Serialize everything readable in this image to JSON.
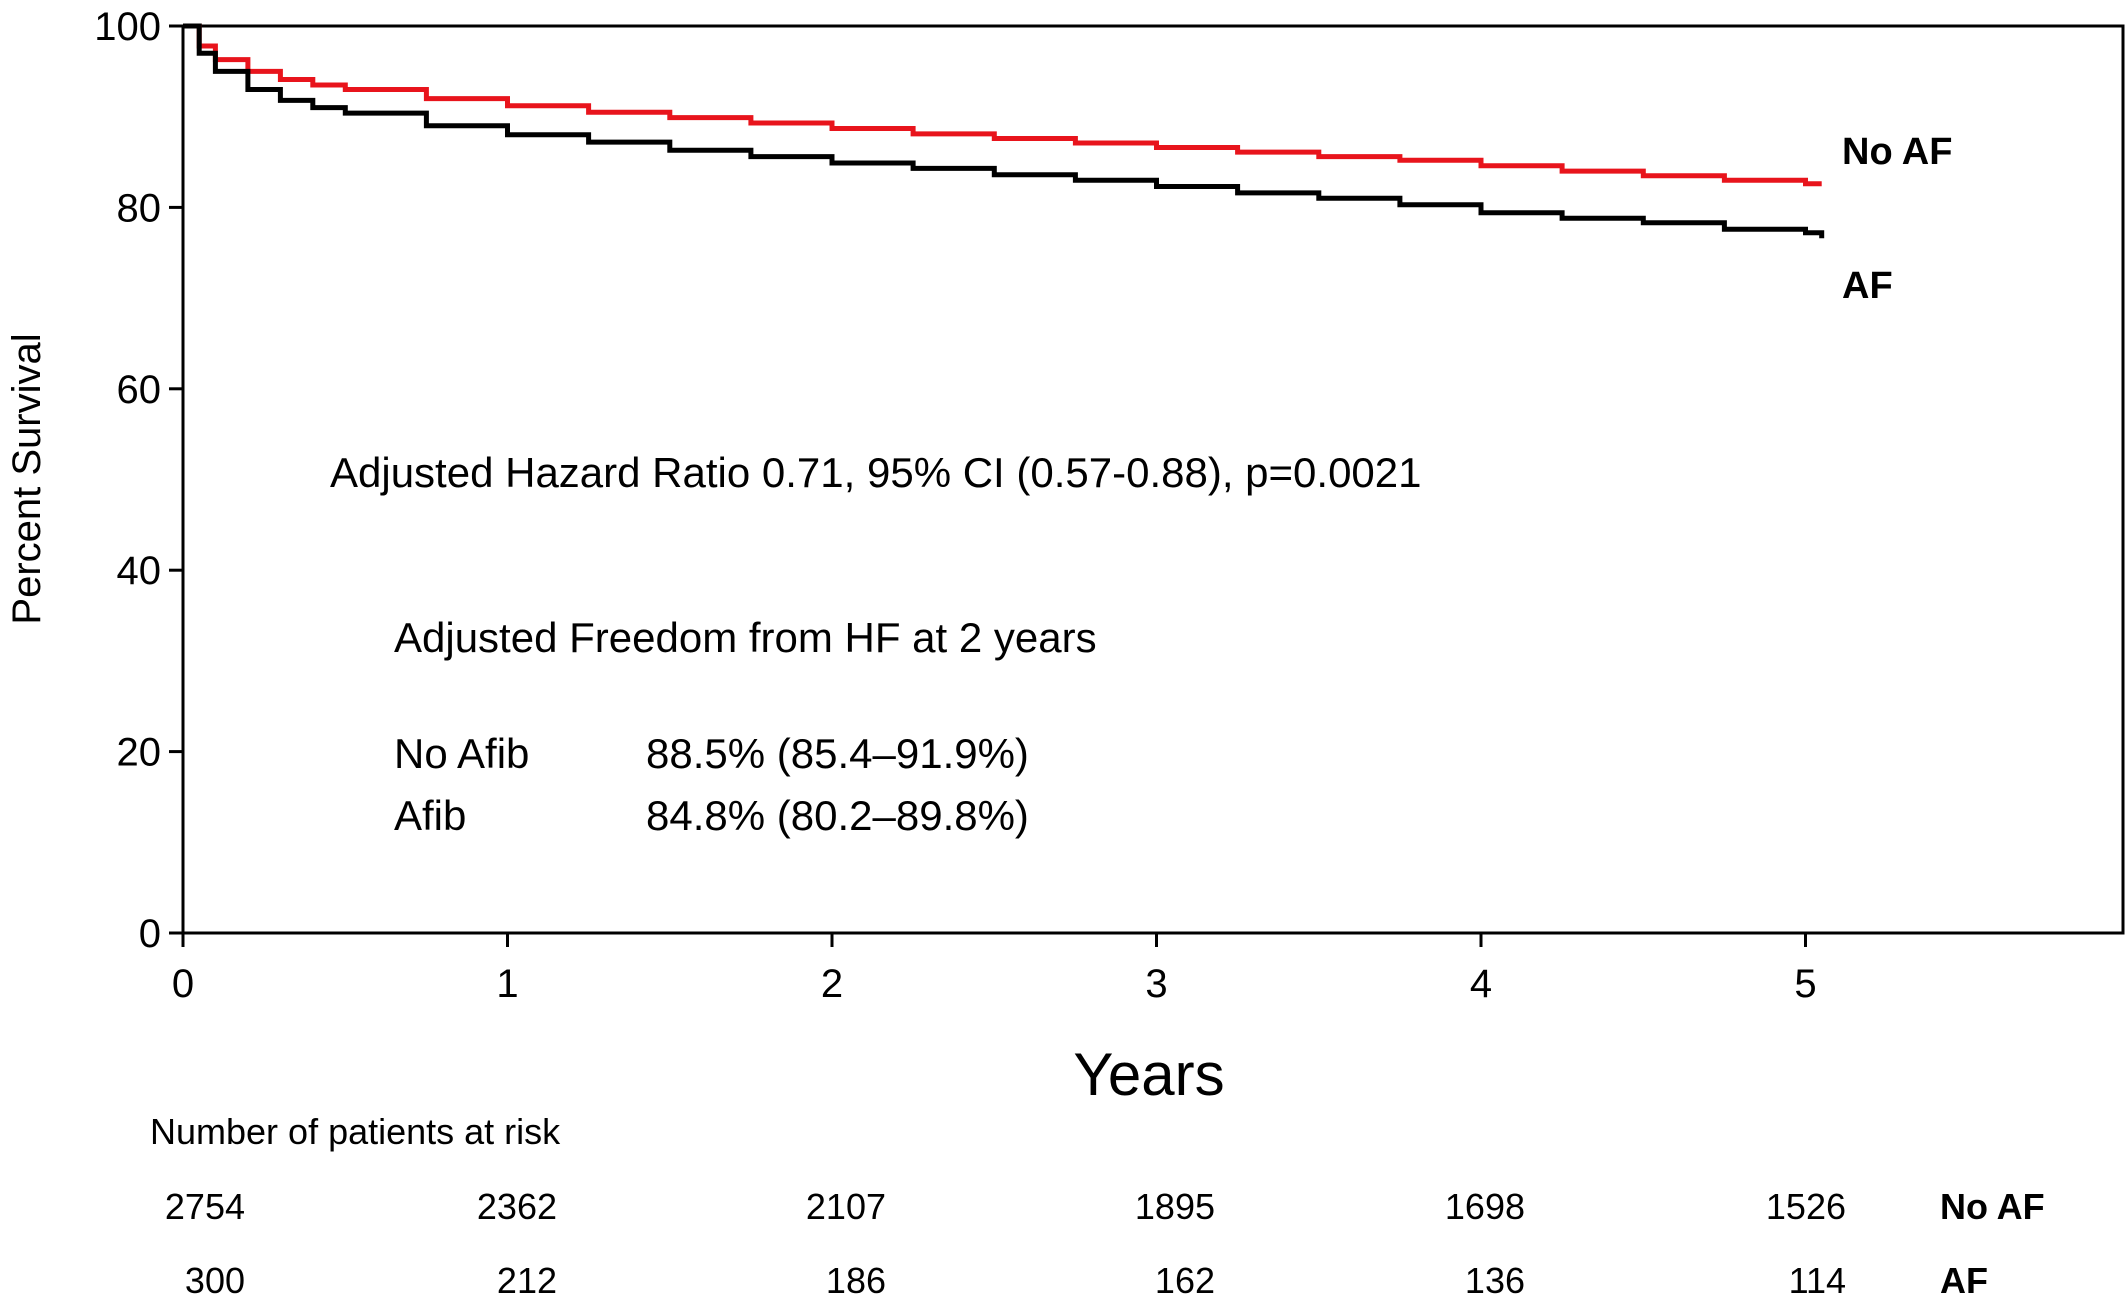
{
  "chart_data": {
    "type": "line",
    "step": true,
    "xlabel": "Years",
    "ylabel": "Percent Survival",
    "xlim": [
      0,
      6
    ],
    "ylim": [
      0,
      100
    ],
    "xticks": [
      0,
      1,
      2,
      3,
      4,
      5
    ],
    "yticks": [
      0,
      20,
      40,
      60,
      80,
      100
    ],
    "grid": false,
    "series": [
      {
        "name": "No AF",
        "color": "#e8141c",
        "x": [
          0,
          0.05,
          0.1,
          0.2,
          0.3,
          0.4,
          0.5,
          0.75,
          1.0,
          1.25,
          1.5,
          1.75,
          2.0,
          2.25,
          2.5,
          2.75,
          3.0,
          3.25,
          3.5,
          3.75,
          4.0,
          4.25,
          4.5,
          4.75,
          5.0,
          5.05
        ],
        "y": [
          100,
          97.8,
          96.3,
          95.0,
          94.1,
          93.5,
          93.0,
          92.0,
          91.2,
          90.5,
          89.9,
          89.3,
          88.7,
          88.1,
          87.6,
          87.1,
          86.6,
          86.1,
          85.6,
          85.2,
          84.6,
          84.0,
          83.5,
          83.0,
          82.6,
          82.6
        ]
      },
      {
        "name": "AF",
        "color": "#000000",
        "x": [
          0,
          0.05,
          0.1,
          0.2,
          0.3,
          0.4,
          0.5,
          0.75,
          1.0,
          1.25,
          1.5,
          1.75,
          2.0,
          2.25,
          2.5,
          2.75,
          3.0,
          3.25,
          3.5,
          3.75,
          4.0,
          4.25,
          4.5,
          4.75,
          5.0,
          5.05
        ],
        "y": [
          100,
          97.0,
          95.0,
          93.0,
          91.8,
          91.0,
          90.4,
          89.0,
          88.0,
          87.2,
          86.3,
          85.6,
          84.9,
          84.3,
          83.6,
          83.0,
          82.3,
          81.6,
          81.0,
          80.3,
          79.4,
          78.8,
          78.3,
          77.6,
          77.2,
          76.6
        ]
      }
    ],
    "annotations": [
      "Adjusted Hazard Ratio 0.71, 95% CI (0.57-0.88), p=0.0021",
      "Adjusted Freedom from HF at 2 years"
    ],
    "freedom_table": [
      {
        "group": "No Afib",
        "value": "88.5% (85.4–91.9%)"
      },
      {
        "group": "Afib",
        "value": "84.8% (80.2–89.8%)"
      }
    ],
    "risk_table": {
      "title": "Number of patients at risk",
      "rows": [
        {
          "label": "No AF",
          "values": [
            "2754",
            "2362",
            "2107",
            "1895",
            "1698",
            "1526"
          ]
        },
        {
          "label": "AF",
          "values": [
            "300",
            "212",
            "186",
            "162",
            "136",
            "114"
          ]
        }
      ]
    }
  }
}
